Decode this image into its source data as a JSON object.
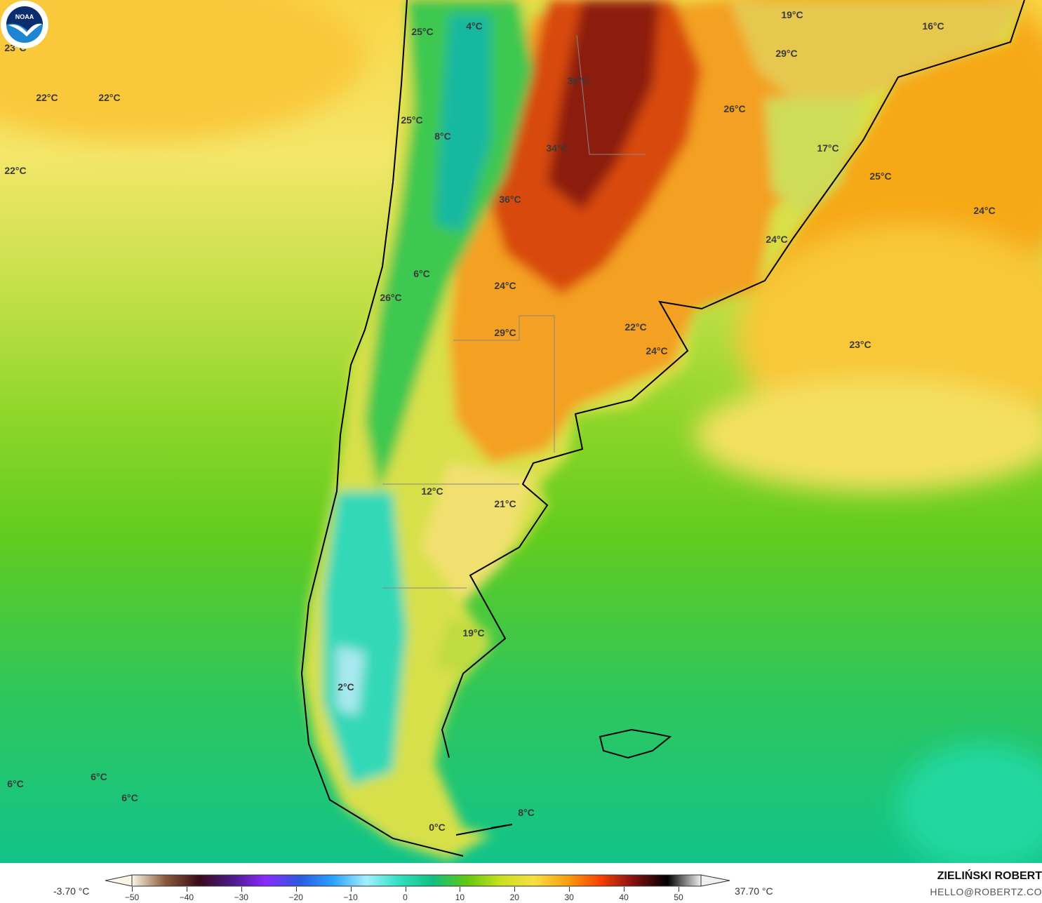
{
  "map": {
    "variable": "2m temperature",
    "labels": [
      "23°C",
      "22°C",
      "22°C",
      "22°C",
      "25°C",
      "4°C",
      "19°C",
      "16°C",
      "29°C",
      "38°C",
      "26°C",
      "25°C",
      "8°C",
      "34°C",
      "17°C",
      "25°C",
      "36°C",
      "24°C",
      "24°C",
      "6°C",
      "24°C",
      "26°C",
      "22°C",
      "29°C",
      "23°C",
      "24°C",
      "12°C",
      "21°C",
      "19°C",
      "2°C",
      "6°C",
      "6°C",
      "6°C",
      "8°C",
      "0°C"
    ],
    "logo": "NOAA"
  },
  "legend": {
    "min_label": "-3.70 °C",
    "max_label": "37.70 °C",
    "ticks": [
      "−50",
      "−40",
      "−30",
      "−20",
      "−10",
      "0",
      "10",
      "20",
      "30",
      "40",
      "50"
    ],
    "colors": [
      "#fbf6e8",
      "#8a5a3a",
      "#3a0a1a",
      "#4a1a8a",
      "#8a2aff",
      "#2a5ae0",
      "#2aa0ff",
      "#a0f0ff",
      "#30e0c0",
      "#10c080",
      "#60c810",
      "#c8e020",
      "#f8e040",
      "#f8a010",
      "#f84000",
      "#801010",
      "#000000",
      "#f0f0f0"
    ]
  },
  "credits": {
    "author": "ZIELIŃSKI ROBERT",
    "email": "HELLO@ROBERTZ.CO"
  }
}
